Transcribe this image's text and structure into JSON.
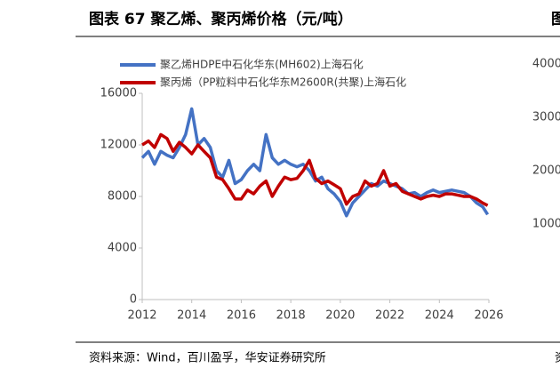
{
  "chart_data": [
    {
      "type": "line",
      "title": "图表 67 聚乙烯、聚丙烯价格（元/吨）",
      "source": "资料来源：Wind，百川盈孚，华安证券研究所",
      "x": [
        2012.0,
        2012.25,
        2012.5,
        2012.75,
        2013.0,
        2013.25,
        2013.5,
        2013.75,
        2014.0,
        2014.25,
        2014.5,
        2014.75,
        2015.0,
        2015.25,
        2015.5,
        2015.75,
        2016.0,
        2016.25,
        2016.5,
        2016.75,
        2017.0,
        2017.25,
        2017.5,
        2017.75,
        2018.0,
        2018.25,
        2018.5,
        2018.75,
        2019.0,
        2019.25,
        2019.5,
        2019.75,
        2020.0,
        2020.25,
        2020.5,
        2020.75,
        2021.0,
        2021.25,
        2021.5,
        2021.75,
        2022.0,
        2022.25,
        2022.5,
        2022.75,
        2023.0,
        2023.25,
        2023.5,
        2023.75,
        2024.0,
        2024.25,
        2024.5,
        2024.75,
        2025.0,
        2025.25,
        2025.5,
        2025.75,
        2025.95
      ],
      "series": [
        {
          "name": "聚乙烯HDPE中石化华东(MH602)上海石化",
          "color": "#4472c4",
          "values": [
            11000,
            11500,
            10500,
            11500,
            11200,
            11000,
            11800,
            12800,
            14800,
            12000,
            12500,
            11800,
            10000,
            9500,
            10800,
            9000,
            9300,
            10000,
            10500,
            10000,
            12800,
            11000,
            10500,
            10800,
            10500,
            10300,
            10500,
            10000,
            9200,
            9500,
            8600,
            8200,
            7600,
            6500,
            7500,
            8000,
            8500,
            9000,
            8800,
            9200,
            9000,
            8800,
            8600,
            8200,
            8300,
            8000,
            8300,
            8500,
            8300,
            8400,
            8500,
            8400,
            8300,
            8000,
            7500,
            7200,
            6600
          ]
        },
        {
          "name": "聚丙烯（PP粒料中石化华东M2600R(共聚)上海石化",
          "color": "#c00000",
          "values": [
            12000,
            12300,
            11800,
            12800,
            12500,
            11500,
            12200,
            11800,
            11300,
            12000,
            11500,
            11000,
            9500,
            9300,
            8600,
            7800,
            7800,
            8500,
            8200,
            8800,
            9200,
            8000,
            8800,
            9500,
            9300,
            9400,
            10000,
            10800,
            9400,
            9000,
            9200,
            8900,
            8600,
            7400,
            8000,
            8200,
            9200,
            8800,
            9000,
            10000,
            8800,
            9000,
            8400,
            8200,
            8000,
            7800,
            8000,
            8100,
            8000,
            8200,
            8200,
            8100,
            8000,
            8000,
            7800,
            7500,
            7300
          ]
        }
      ],
      "xlim": [
        2012,
        2026
      ],
      "xticks": [
        2012,
        2014,
        2016,
        2018,
        2020,
        2022,
        2024,
        2026
      ],
      "ylim": [
        0,
        16000
      ],
      "yticks": [
        0,
        4000,
        8000,
        12000,
        16000
      ]
    },
    {
      "type": "line",
      "title": "图",
      "source": "资",
      "ylim": [
        1000,
        4000
      ],
      "yticks": [
        1000,
        2000,
        3000,
        4000
      ]
    }
  ]
}
